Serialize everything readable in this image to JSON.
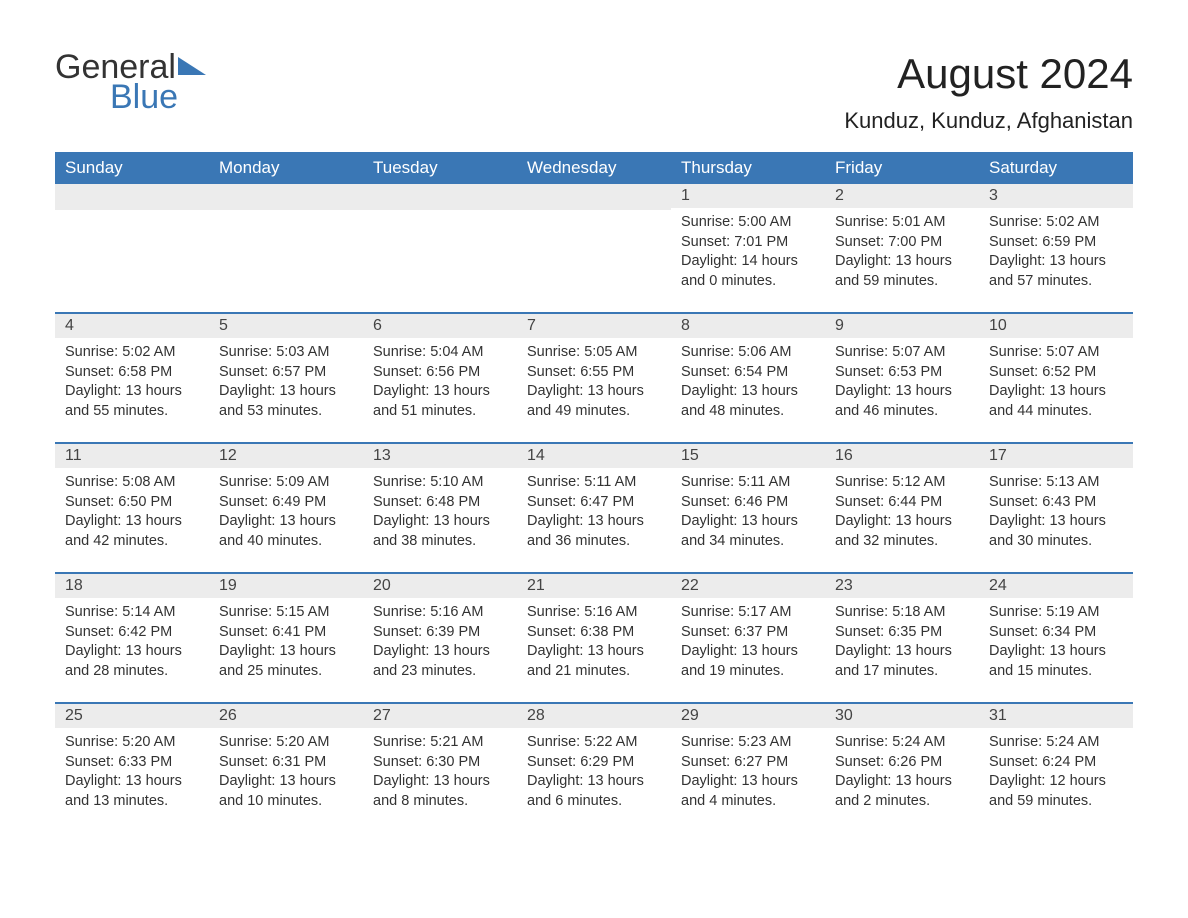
{
  "logo": {
    "word1": "General",
    "word2": "Blue"
  },
  "title": "August 2024",
  "location": "Kunduz, Kunduz, Afghanistan",
  "colors": {
    "primary": "#3a77b5",
    "header_bg": "#ececec",
    "text": "#333333",
    "title_text": "#222222",
    "white": "#ffffff"
  },
  "day_headers": [
    "Sunday",
    "Monday",
    "Tuesday",
    "Wednesday",
    "Thursday",
    "Friday",
    "Saturday"
  ],
  "weeks": [
    [
      {
        "day": "",
        "sunrise": "",
        "sunset": "",
        "daylight": ""
      },
      {
        "day": "",
        "sunrise": "",
        "sunset": "",
        "daylight": ""
      },
      {
        "day": "",
        "sunrise": "",
        "sunset": "",
        "daylight": ""
      },
      {
        "day": "",
        "sunrise": "",
        "sunset": "",
        "daylight": ""
      },
      {
        "day": "1",
        "sunrise": "Sunrise: 5:00 AM",
        "sunset": "Sunset: 7:01 PM",
        "daylight": "Daylight: 14 hours and 0 minutes."
      },
      {
        "day": "2",
        "sunrise": "Sunrise: 5:01 AM",
        "sunset": "Sunset: 7:00 PM",
        "daylight": "Daylight: 13 hours and 59 minutes."
      },
      {
        "day": "3",
        "sunrise": "Sunrise: 5:02 AM",
        "sunset": "Sunset: 6:59 PM",
        "daylight": "Daylight: 13 hours and 57 minutes."
      }
    ],
    [
      {
        "day": "4",
        "sunrise": "Sunrise: 5:02 AM",
        "sunset": "Sunset: 6:58 PM",
        "daylight": "Daylight: 13 hours and 55 minutes."
      },
      {
        "day": "5",
        "sunrise": "Sunrise: 5:03 AM",
        "sunset": "Sunset: 6:57 PM",
        "daylight": "Daylight: 13 hours and 53 minutes."
      },
      {
        "day": "6",
        "sunrise": "Sunrise: 5:04 AM",
        "sunset": "Sunset: 6:56 PM",
        "daylight": "Daylight: 13 hours and 51 minutes."
      },
      {
        "day": "7",
        "sunrise": "Sunrise: 5:05 AM",
        "sunset": "Sunset: 6:55 PM",
        "daylight": "Daylight: 13 hours and 49 minutes."
      },
      {
        "day": "8",
        "sunrise": "Sunrise: 5:06 AM",
        "sunset": "Sunset: 6:54 PM",
        "daylight": "Daylight: 13 hours and 48 minutes."
      },
      {
        "day": "9",
        "sunrise": "Sunrise: 5:07 AM",
        "sunset": "Sunset: 6:53 PM",
        "daylight": "Daylight: 13 hours and 46 minutes."
      },
      {
        "day": "10",
        "sunrise": "Sunrise: 5:07 AM",
        "sunset": "Sunset: 6:52 PM",
        "daylight": "Daylight: 13 hours and 44 minutes."
      }
    ],
    [
      {
        "day": "11",
        "sunrise": "Sunrise: 5:08 AM",
        "sunset": "Sunset: 6:50 PM",
        "daylight": "Daylight: 13 hours and 42 minutes."
      },
      {
        "day": "12",
        "sunrise": "Sunrise: 5:09 AM",
        "sunset": "Sunset: 6:49 PM",
        "daylight": "Daylight: 13 hours and 40 minutes."
      },
      {
        "day": "13",
        "sunrise": "Sunrise: 5:10 AM",
        "sunset": "Sunset: 6:48 PM",
        "daylight": "Daylight: 13 hours and 38 minutes."
      },
      {
        "day": "14",
        "sunrise": "Sunrise: 5:11 AM",
        "sunset": "Sunset: 6:47 PM",
        "daylight": "Daylight: 13 hours and 36 minutes."
      },
      {
        "day": "15",
        "sunrise": "Sunrise: 5:11 AM",
        "sunset": "Sunset: 6:46 PM",
        "daylight": "Daylight: 13 hours and 34 minutes."
      },
      {
        "day": "16",
        "sunrise": "Sunrise: 5:12 AM",
        "sunset": "Sunset: 6:44 PM",
        "daylight": "Daylight: 13 hours and 32 minutes."
      },
      {
        "day": "17",
        "sunrise": "Sunrise: 5:13 AM",
        "sunset": "Sunset: 6:43 PM",
        "daylight": "Daylight: 13 hours and 30 minutes."
      }
    ],
    [
      {
        "day": "18",
        "sunrise": "Sunrise: 5:14 AM",
        "sunset": "Sunset: 6:42 PM",
        "daylight": "Daylight: 13 hours and 28 minutes."
      },
      {
        "day": "19",
        "sunrise": "Sunrise: 5:15 AM",
        "sunset": "Sunset: 6:41 PM",
        "daylight": "Daylight: 13 hours and 25 minutes."
      },
      {
        "day": "20",
        "sunrise": "Sunrise: 5:16 AM",
        "sunset": "Sunset: 6:39 PM",
        "daylight": "Daylight: 13 hours and 23 minutes."
      },
      {
        "day": "21",
        "sunrise": "Sunrise: 5:16 AM",
        "sunset": "Sunset: 6:38 PM",
        "daylight": "Daylight: 13 hours and 21 minutes."
      },
      {
        "day": "22",
        "sunrise": "Sunrise: 5:17 AM",
        "sunset": "Sunset: 6:37 PM",
        "daylight": "Daylight: 13 hours and 19 minutes."
      },
      {
        "day": "23",
        "sunrise": "Sunrise: 5:18 AM",
        "sunset": "Sunset: 6:35 PM",
        "daylight": "Daylight: 13 hours and 17 minutes."
      },
      {
        "day": "24",
        "sunrise": "Sunrise: 5:19 AM",
        "sunset": "Sunset: 6:34 PM",
        "daylight": "Daylight: 13 hours and 15 minutes."
      }
    ],
    [
      {
        "day": "25",
        "sunrise": "Sunrise: 5:20 AM",
        "sunset": "Sunset: 6:33 PM",
        "daylight": "Daylight: 13 hours and 13 minutes."
      },
      {
        "day": "26",
        "sunrise": "Sunrise: 5:20 AM",
        "sunset": "Sunset: 6:31 PM",
        "daylight": "Daylight: 13 hours and 10 minutes."
      },
      {
        "day": "27",
        "sunrise": "Sunrise: 5:21 AM",
        "sunset": "Sunset: 6:30 PM",
        "daylight": "Daylight: 13 hours and 8 minutes."
      },
      {
        "day": "28",
        "sunrise": "Sunrise: 5:22 AM",
        "sunset": "Sunset: 6:29 PM",
        "daylight": "Daylight: 13 hours and 6 minutes."
      },
      {
        "day": "29",
        "sunrise": "Sunrise: 5:23 AM",
        "sunset": "Sunset: 6:27 PM",
        "daylight": "Daylight: 13 hours and 4 minutes."
      },
      {
        "day": "30",
        "sunrise": "Sunrise: 5:24 AM",
        "sunset": "Sunset: 6:26 PM",
        "daylight": "Daylight: 13 hours and 2 minutes."
      },
      {
        "day": "31",
        "sunrise": "Sunrise: 5:24 AM",
        "sunset": "Sunset: 6:24 PM",
        "daylight": "Daylight: 12 hours and 59 minutes."
      }
    ]
  ]
}
